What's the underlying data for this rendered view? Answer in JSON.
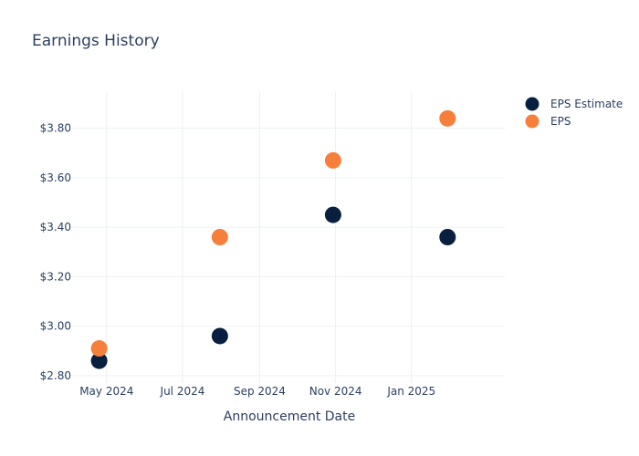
{
  "chart_data": {
    "type": "scatter",
    "title": "Earnings History",
    "xlabel": "Announcement Date",
    "ylabel": "",
    "x_ticks": [
      "2024-05-01",
      "2024-07-01",
      "2024-09-01",
      "2024-11-01",
      "2025-01-01"
    ],
    "x_tick_labels": [
      "May 2024",
      "Jul 2024",
      "Sep 2024",
      "Nov 2024",
      "Jan 2025"
    ],
    "xlim": [
      "2024-04-04",
      "2025-03-17"
    ],
    "y_ticks": [
      2.8,
      3.0,
      3.2,
      3.4,
      3.6,
      3.8
    ],
    "y_tick_labels": [
      "$2.80",
      "$3.00",
      "$3.20",
      "$3.40",
      "$3.60",
      "$3.80"
    ],
    "ylim": [
      2.77,
      3.95
    ],
    "grid": true,
    "legend_position": "top-right",
    "series": [
      {
        "name": "EPS Estimate",
        "color": "#081f3f",
        "points": [
          {
            "x": "2024-04-25",
            "y": 2.86
          },
          {
            "x": "2024-07-31",
            "y": 2.96
          },
          {
            "x": "2024-10-30",
            "y": 3.45
          },
          {
            "x": "2025-01-30",
            "y": 3.36
          }
        ]
      },
      {
        "name": "EPS",
        "color": "#f57f3b",
        "points": [
          {
            "x": "2024-04-25",
            "y": 2.91
          },
          {
            "x": "2024-07-31",
            "y": 3.36
          },
          {
            "x": "2024-10-30",
            "y": 3.67
          },
          {
            "x": "2025-01-30",
            "y": 3.84
          }
        ]
      }
    ]
  }
}
